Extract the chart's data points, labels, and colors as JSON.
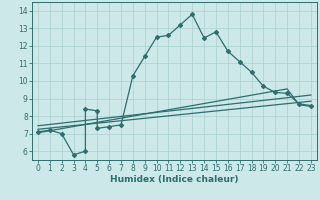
{
  "title": "",
  "xlabel": "Humidex (Indice chaleur)",
  "ylabel": "",
  "xlim": [
    -0.5,
    23.5
  ],
  "ylim": [
    5.5,
    14.5
  ],
  "xticks": [
    0,
    1,
    2,
    3,
    4,
    5,
    6,
    7,
    8,
    9,
    10,
    11,
    12,
    13,
    14,
    15,
    16,
    17,
    18,
    19,
    20,
    21,
    22,
    23
  ],
  "yticks": [
    6,
    7,
    8,
    9,
    10,
    11,
    12,
    13,
    14
  ],
  "bg_color": "#cce8e8",
  "grid_color": "#aad0d0",
  "line_color": "#2d6e6e",
  "line1_x": [
    0,
    1,
    2,
    3,
    4,
    4,
    5,
    5,
    6,
    7,
    8,
    9,
    10,
    11,
    12,
    13,
    14,
    15,
    16,
    17,
    18,
    19,
    20,
    21,
    22,
    23
  ],
  "line1_y": [
    7.1,
    7.2,
    7.0,
    5.8,
    6.0,
    8.4,
    8.3,
    7.3,
    7.4,
    7.5,
    10.3,
    11.4,
    12.5,
    12.6,
    13.2,
    13.8,
    12.45,
    12.8,
    11.7,
    11.1,
    10.5,
    9.7,
    9.35,
    9.3,
    8.7,
    8.6
  ],
  "line2_x": [
    0,
    21,
    22,
    23
  ],
  "line2_y": [
    7.05,
    9.55,
    8.65,
    8.55
  ],
  "line3_x": [
    0,
    23
  ],
  "line3_y": [
    7.25,
    8.85
  ],
  "line4_x": [
    0,
    23
  ],
  "line4_y": [
    7.45,
    9.2
  ]
}
